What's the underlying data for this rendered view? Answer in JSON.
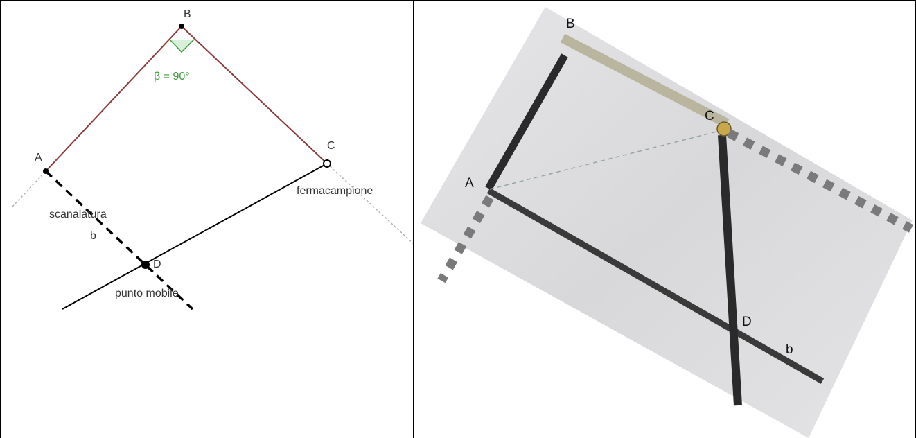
{
  "left_diagram": {
    "points": {
      "A": "A",
      "B": "B",
      "C": "C",
      "D": "D"
    },
    "angle_label": "β = 90°",
    "labels": {
      "slot": "scanalatura",
      "line_b": "b",
      "mobile_point": "punto mobile",
      "sample_stop": "fermacampione"
    },
    "colors": {
      "triangle_sides": "#8b3a3a",
      "angle_marker": "#3a9a3a",
      "construction_lines": "#000000",
      "helper_lines": "#b0b0b0"
    }
  },
  "right_photo": {
    "points": {
      "A": "A",
      "B": "B",
      "C": "C",
      "D": "D"
    },
    "labels": {
      "line_b": "b"
    },
    "colors": {
      "paper": "#dcdcde",
      "pencil_lines": "#2a2a2a",
      "dashed_extension": "#7a7a7a",
      "pin": "#c8a84a"
    }
  }
}
